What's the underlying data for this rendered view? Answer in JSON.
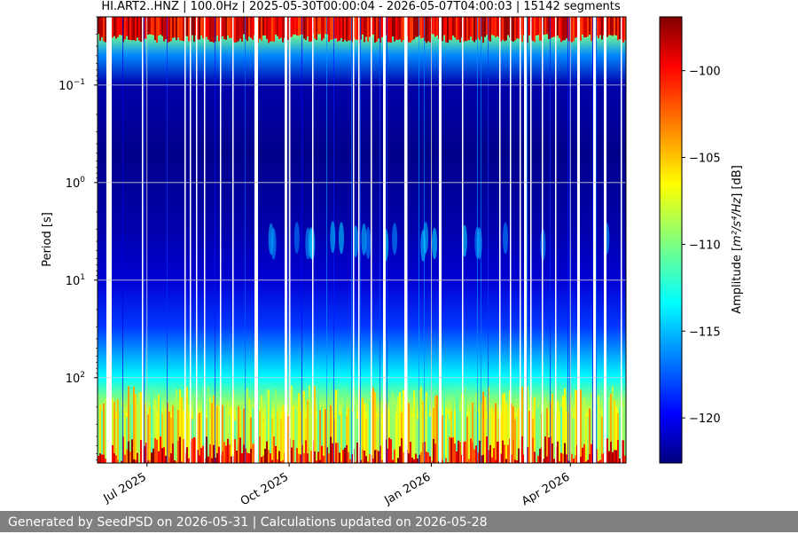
{
  "chart_data": {
    "type": "heatmap",
    "title": "HI.ART2..HNZ | 100.0Hz | 2025-05-30T00:00:04 - 2026-05-07T04:00:03 | 15142 segments",
    "xlabel": "",
    "ylabel": "Period [s]",
    "x_range": [
      "2025-05-30",
      "2026-05-07"
    ],
    "x_ticks": [
      {
        "date": "2025-07-01",
        "label": "Jul 2025"
      },
      {
        "date": "2025-10-01",
        "label": "Oct 2025"
      },
      {
        "date": "2026-01-01",
        "label": "Jan 2026"
      },
      {
        "date": "2026-04-01",
        "label": "Apr 2026"
      }
    ],
    "y_scale": "log",
    "y_inverted": true,
    "y_range_s": [
      0.02,
      750
    ],
    "y_ticks": [
      {
        "value": 0.1,
        "base": "10",
        "exp": "−1"
      },
      {
        "value": 1,
        "base": "10",
        "exp": "0"
      },
      {
        "value": 10,
        "base": "10",
        "exp": "1"
      },
      {
        "value": 100,
        "base": "10",
        "exp": "2"
      }
    ],
    "grid": true,
    "colorbar": {
      "label_prefix": "Amplitude [",
      "label_units": "m²/s⁴/Hz",
      "label_suffix": "] [dB]",
      "range_db": [
        -122.6,
        -96.9
      ],
      "ticks": [
        "−100",
        "−105",
        "−110",
        "−115",
        "−120"
      ],
      "tick_values": [
        -100,
        -105,
        -110,
        -115,
        -120
      ],
      "colormap": "jet"
    },
    "profile": [
      {
        "period_s": 0.02,
        "db": -99
      },
      {
        "period_s": 0.03,
        "db": -110
      },
      {
        "period_s": 0.05,
        "db": -116
      },
      {
        "period_s": 0.1,
        "db": -121.5
      },
      {
        "period_s": 0.5,
        "db": -122.3
      },
      {
        "period_s": 3,
        "db": -121.5
      },
      {
        "period_s": 10,
        "db": -120.5
      },
      {
        "period_s": 30,
        "db": -118
      },
      {
        "period_s": 100,
        "db": -113
      },
      {
        "period_s": 250,
        "db": -107
      },
      {
        "period_s": 450,
        "db": -102
      },
      {
        "period_s": 750,
        "db": -99
      }
    ]
  },
  "footer": {
    "text": "Generated by SeedPSD on 2026-05-31 | Calculations updated on 2026-05-28"
  }
}
